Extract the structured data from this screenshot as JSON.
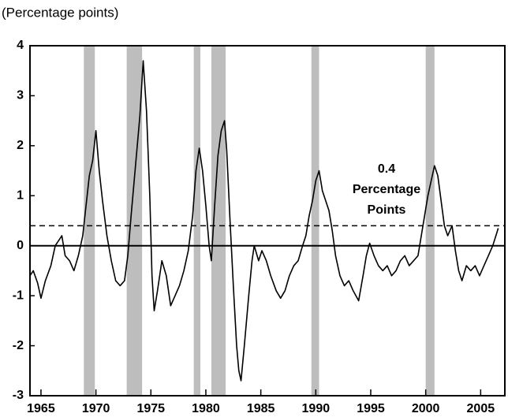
{
  "chart_data": {
    "type": "line",
    "y_axis_label": "(Percentage points)",
    "xlim": [
      1964,
      2007.2
    ],
    "ylim": [
      -3,
      4
    ],
    "xticks": [
      1965,
      1970,
      1975,
      1980,
      1985,
      1990,
      1995,
      2000,
      2005
    ],
    "yticks": [
      -3,
      -2,
      -1,
      0,
      1,
      2,
      3,
      4
    ],
    "color": "#000000",
    "shade_color": "#bdbdbd",
    "shaded_periods": [
      [
        1968.9,
        1969.9
      ],
      [
        1972.8,
        1974.2
      ],
      [
        1978.9,
        1979.5
      ],
      [
        1980.5,
        1981.8
      ],
      [
        1989.6,
        1990.3
      ],
      [
        2000.0,
        2000.8
      ]
    ],
    "reference_line": 0.4,
    "annotation": [
      "0.4",
      "Percentage",
      "Points"
    ],
    "x": [
      1964.0,
      1964.3,
      1964.7,
      1965.0,
      1965.4,
      1965.9,
      1966.3,
      1966.9,
      1967.2,
      1967.6,
      1968.0,
      1968.4,
      1968.8,
      1969.1,
      1969.4,
      1969.7,
      1970.0,
      1970.3,
      1970.6,
      1971.0,
      1971.4,
      1971.8,
      1972.2,
      1972.6,
      1972.9,
      1973.2,
      1973.6,
      1974.0,
      1974.3,
      1974.6,
      1974.9,
      1975.1,
      1975.3,
      1975.6,
      1976.0,
      1976.4,
      1976.8,
      1977.2,
      1977.6,
      1978.0,
      1978.4,
      1978.8,
      1979.1,
      1979.4,
      1979.7,
      1980.0,
      1980.3,
      1980.5,
      1980.8,
      1981.1,
      1981.4,
      1981.7,
      1981.9,
      1982.2,
      1982.5,
      1982.8,
      1983.0,
      1983.2,
      1983.5,
      1983.9,
      1984.2,
      1984.4,
      1984.8,
      1985.1,
      1985.5,
      1985.9,
      1986.4,
      1986.8,
      1987.2,
      1987.6,
      1988.0,
      1988.4,
      1988.8,
      1989.1,
      1989.4,
      1989.7,
      1990.0,
      1990.3,
      1990.6,
      1990.9,
      1991.2,
      1991.5,
      1991.8,
      1992.2,
      1992.6,
      1993.0,
      1993.4,
      1993.9,
      1994.3,
      1994.6,
      1994.9,
      1995.3,
      1995.7,
      1996.1,
      1996.5,
      1996.9,
      1997.3,
      1997.7,
      1998.1,
      1998.5,
      1998.9,
      1999.3,
      1999.6,
      1999.9,
      2000.2,
      2000.5,
      2000.8,
      2001.1,
      2001.4,
      2001.7,
      2002.0,
      2002.2,
      2002.4,
      2002.7,
      2003.0,
      2003.3,
      2003.7,
      2004.1,
      2004.5,
      2004.9,
      2005.3,
      2005.7,
      2006.1,
      2006.6
    ],
    "values": [
      -0.6,
      -0.5,
      -0.75,
      -1.05,
      -0.7,
      -0.4,
      0.0,
      0.2,
      -0.2,
      -0.3,
      -0.5,
      -0.2,
      0.2,
      0.8,
      1.4,
      1.7,
      2.3,
      1.5,
      0.9,
      0.2,
      -0.3,
      -0.7,
      -0.8,
      -0.7,
      -0.2,
      0.6,
      1.6,
      2.6,
      3.7,
      2.7,
      1.0,
      -0.6,
      -1.3,
      -0.9,
      -0.3,
      -0.6,
      -1.2,
      -1.0,
      -0.8,
      -0.5,
      -0.1,
      0.6,
      1.5,
      1.95,
      1.5,
      0.8,
      0.0,
      -0.3,
      0.8,
      1.8,
      2.3,
      2.5,
      1.9,
      0.5,
      -0.8,
      -2.0,
      -2.5,
      -2.7,
      -2.0,
      -1.0,
      -0.3,
      0.0,
      -0.3,
      -0.1,
      -0.3,
      -0.6,
      -0.9,
      -1.05,
      -0.9,
      -0.6,
      -0.4,
      -0.3,
      0.0,
      0.2,
      0.6,
      0.9,
      1.3,
      1.5,
      1.1,
      0.9,
      0.7,
      0.3,
      -0.2,
      -0.6,
      -0.8,
      -0.7,
      -0.9,
      -1.1,
      -0.6,
      -0.2,
      0.05,
      -0.2,
      -0.4,
      -0.5,
      -0.4,
      -0.6,
      -0.5,
      -0.3,
      -0.2,
      -0.4,
      -0.3,
      -0.2,
      0.2,
      0.6,
      1.0,
      1.3,
      1.6,
      1.4,
      0.9,
      0.4,
      0.2,
      0.3,
      0.4,
      -0.1,
      -0.5,
      -0.7,
      -0.4,
      -0.5,
      -0.4,
      -0.6,
      -0.4,
      -0.2,
      0.0,
      0.35
    ]
  }
}
